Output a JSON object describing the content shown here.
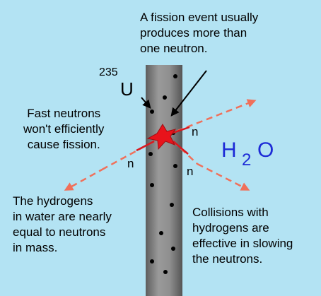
{
  "labels": {
    "fission_event": [
      "A fission event usually",
      "produces more than",
      "one neutron."
    ],
    "fast_neutrons": [
      "Fast neutrons",
      "won't efficiently",
      "cause fission."
    ],
    "hydrogens_mass": [
      "The hydrogens",
      "in water are nearly",
      "equal to neutrons",
      "in mass."
    ],
    "collisions": [
      "Collisions with",
      "hydrogens are",
      "effective in slowing",
      "the neutrons."
    ]
  },
  "uranium": {
    "mass_number": "235",
    "symbol": "U"
  },
  "neutron_label": "n",
  "water": {
    "h": "H",
    "sub": "2",
    "o": "O"
  },
  "colors": {
    "background": "#b3e3f3",
    "rod": "#8a8a8a",
    "star": "#e8131b",
    "neutron_arrow": "#f0705a",
    "water_text": "#1d2bd6"
  },
  "icons": [
    "fission-star-icon",
    "fuel-rod",
    "neutron-arrow"
  ]
}
